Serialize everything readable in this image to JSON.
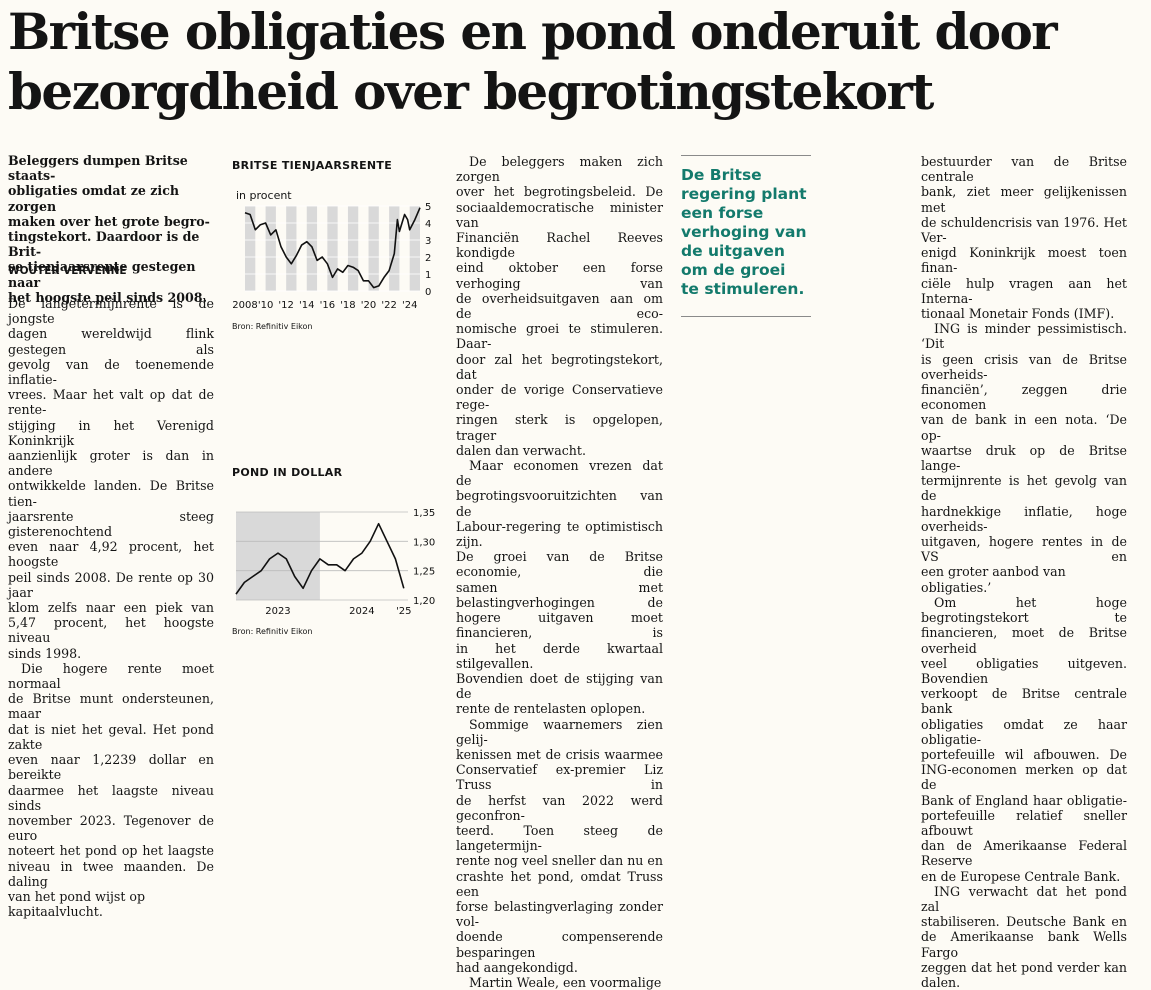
{
  "headline": [
    "Britse obligaties en pond onderuit door",
    "bezorgdheid over begrotingstekort"
  ],
  "lead": [
    "Beleggers dumpen Britse staats-",
    "obligaties omdat ze zich zorgen",
    "maken over het grote begro-",
    "tingstekort. Daardoor is de Brit-",
    "se tienjaarsrente gestegen naar",
    "het hoogste peil sinds 2008."
  ],
  "byline": "WOUTER VERVENNE",
  "col1": [
    [
      "De langetermijnrente is de jongste",
      "dagen wereldwijd flink gestegen als",
      "gevolg van de toenemende inflatie-",
      "vrees. Maar het valt op dat de rente-",
      "stijging in het Verenigd Koninkrijk",
      "aanzienlijk groter is dan in andere",
      "ontwikkelde landen. De Britse tien-",
      "jaarsrente steeg gisterenochtend",
      "even naar 4,92 procent, het hoogste",
      "peil sinds 2008. De rente op 30 jaar",
      "klom zelfs naar een piek van",
      "5,47 procent, het hoogste niveau",
      "sinds 1998."
    ],
    [
      "Die hogere rente moet normaal",
      "de Britse munt ondersteunen, maar",
      "dat is niet het geval. Het pond zakte",
      "even naar 1,2239 dollar en bereikte",
      "daarmee het laagste niveau sinds",
      "november 2023. Tegenover de euro",
      "noteert het pond op het laagste",
      "niveau in twee maanden. De daling",
      "van het pond wijst op kapitaalvlucht."
    ]
  ],
  "col2": [
    [
      "De beleggers maken zich zorgen",
      "over het begrotingsbeleid. De",
      "sociaaldemocratische minister van",
      "Financiën Rachel Reeves kondigde",
      "eind oktober een forse verhoging van",
      "de overheidsuitgaven aan om de eco-",
      "nomische groei te stimuleren. Daar-",
      "door zal het begrotingstekort, dat",
      "onder de vorige Conservatieve rege-",
      "ringen sterk is opgelopen, trager",
      "dalen dan verwacht."
    ],
    [
      "Maar economen vrezen dat de",
      "begrotingsvooruitzichten van de",
      "Labour-regering te optimistisch zijn.",
      "De groei van de Britse economie, die",
      "samen met belastingverhogingen de",
      "hogere uitgaven moet financieren, is",
      "in het derde kwartaal stilgevallen.",
      "Bovendien doet de stijging van de",
      "rente de rentelasten oplopen."
    ],
    [
      "Sommige waarnemers zien gelij-",
      "kenissen met de crisis waarmee",
      "Conservatief ex-premier Liz Truss in",
      "de herfst van 2022 werd geconfron-",
      "teerd. Toen steeg de langetermijn-",
      "rente nog veel sneller dan nu en",
      "crashte het pond, omdat Truss een",
      "forse belastingverlaging zonder vol-",
      "doende compenserende besparingen",
      "had aangekondigd."
    ],
    [
      "Martin Weale, een voormalige"
    ]
  ],
  "quote": [
    "De Britse",
    "regering plant",
    "een forse",
    "verhoging van",
    "de uitgaven",
    "om de groei",
    "te stimuleren."
  ],
  "col4": [
    [
      "bestuurder van de Britse centrale",
      "bank, ziet meer gelijkenissen met",
      "de schuldencrisis van 1976. Het Ver-",
      "enigd Koninkrijk moest toen finan-",
      "ciële hulp vragen aan het Interna-",
      "tionaal Monetair Fonds (IMF)."
    ],
    [
      "ING is minder pessimistisch. ‘Dit",
      "is geen crisis van de Britse overheids-",
      "financiën’, zeggen drie economen",
      "van de bank in een nota. ‘De op-",
      "waartse druk op de Britse lange-",
      "termijnrente is het gevolg van de",
      "hardnekkige inflatie, hoge overheids-",
      "uitgaven, hogere rentes in de VS en",
      "een groter aanbod van obligaties.’"
    ],
    [
      "Om het hoge begrotingstekort te",
      "financieren, moet de Britse overheid",
      "veel obligaties uitgeven. Bovendien",
      "verkoopt de Britse centrale bank",
      "obligaties omdat ze haar obligatie-",
      "portefeuille wil afbouwen. De",
      "ING-economen merken op dat de",
      "Bank of England haar obligatie-",
      "portefeuille relatief sneller afbouwt",
      "dan de Amerikaanse Federal Reserve",
      "en de Europese Centrale Bank."
    ],
    [
      "ING verwacht dat het pond zal",
      "stabiliseren. Deutsche Bank en",
      "de Amerikaanse bank Wells Fargo",
      "zeggen dat het pond verder kan",
      "dalen."
    ]
  ],
  "chart_data": [
    {
      "type": "line",
      "title": "BRITSE TIENJAARSRENTE",
      "ylabel": "in procent",
      "source": "Bron: Refinitiv Eikon",
      "x_tick_labels": [
        "2008",
        "'10",
        "'12",
        "'14",
        "'16",
        "'18",
        "'20",
        "'22",
        "'24"
      ],
      "y_tick_labels": [
        "5",
        "4",
        "3",
        "2",
        "1",
        "0"
      ],
      "ylim": [
        0,
        5
      ],
      "x": [
        2008.0,
        2008.5,
        2009.0,
        2009.5,
        2010.0,
        2010.5,
        2011.0,
        2011.5,
        2012.0,
        2012.5,
        2013.0,
        2013.5,
        2014.0,
        2014.5,
        2015.0,
        2015.5,
        2016.0,
        2016.5,
        2017.0,
        2017.5,
        2018.0,
        2018.5,
        2019.0,
        2019.5,
        2020.0,
        2020.5,
        2021.0,
        2021.5,
        2022.0,
        2022.5,
        2022.8,
        2023.0,
        2023.5,
        2023.8,
        2024.0,
        2024.5,
        2025.0
      ],
      "y": [
        4.6,
        4.5,
        3.6,
        3.9,
        4.0,
        3.3,
        3.6,
        2.6,
        2.0,
        1.6,
        2.1,
        2.7,
        2.9,
        2.6,
        1.8,
        2.0,
        1.6,
        0.8,
        1.3,
        1.1,
        1.5,
        1.4,
        1.2,
        0.6,
        0.6,
        0.2,
        0.3,
        0.8,
        1.2,
        2.2,
        4.2,
        3.5,
        4.5,
        4.2,
        3.6,
        4.2,
        4.9
      ]
    },
    {
      "type": "line",
      "title": "POND IN DOLLAR",
      "source": "Bron: Refinitiv Eikon",
      "x_tick_labels": [
        "2023",
        "2024",
        "'25"
      ],
      "y_tick_labels": [
        "1,35",
        "1,30",
        "1,25",
        "1,20"
      ],
      "ylim": [
        1.2,
        1.35
      ],
      "x": [
        2023.0,
        2023.1,
        2023.2,
        2023.3,
        2023.4,
        2023.5,
        2023.6,
        2023.7,
        2023.8,
        2023.9,
        2024.0,
        2024.1,
        2024.2,
        2024.3,
        2024.4,
        2024.5,
        2024.6,
        2024.7,
        2024.8,
        2024.9,
        2025.0
      ],
      "y": [
        1.21,
        1.23,
        1.24,
        1.25,
        1.27,
        1.28,
        1.27,
        1.24,
        1.22,
        1.25,
        1.27,
        1.26,
        1.26,
        1.25,
        1.27,
        1.28,
        1.3,
        1.33,
        1.3,
        1.27,
        1.22
      ]
    }
  ]
}
